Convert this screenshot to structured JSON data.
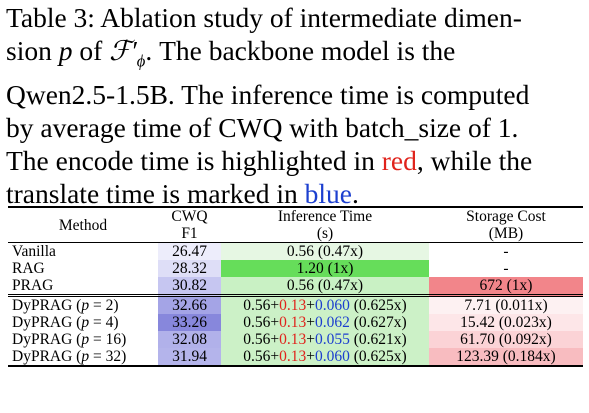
{
  "caption": {
    "line1": "Table 3: Ablation study of intermediate dimen-",
    "line2_pre": "sion ",
    "line2_var": "p",
    "line2_mid": " of ",
    "line2_func": "ℱ",
    "line2_sub": "ϕ",
    "line2_post": ".  The backbone model is the",
    "line3": "Qwen2.5-1.5B. The inference time is computed",
    "line4": "by average time of CWQ with batch_size of 1.",
    "line5_pre": "The encode time is highlighted in ",
    "line5_red": "red",
    "line5_post": ", while the",
    "line6_pre": "translate time is marked in ",
    "line6_blue": "blue",
    "line6_post": "."
  },
  "table": {
    "headers": {
      "method": "Method",
      "cwq": "CWQ",
      "cwq_sub": "F1",
      "inf": "Inference Time",
      "inf_sub": "(s)",
      "stor": "Storage Cost",
      "stor_sub": "(MB)"
    },
    "baselines": [
      {
        "method": "Vanilla",
        "f1": "26.47",
        "time": "0.56 (0.47x)",
        "storage": "-",
        "f1_bg": "#ededfb",
        "time_bg": "#e6f7e3",
        "stor_bg": "#ffffff"
      },
      {
        "method": "RAG",
        "f1": "28.32",
        "time": "1.20 (1x)",
        "storage": "-",
        "f1_bg": "#dedef7",
        "time_bg": "#66dd5a",
        "stor_bg": "#ffffff"
      },
      {
        "method": "PRAG",
        "f1": "30.82",
        "time": "0.56 (0.47x)",
        "storage": "672 (1x)",
        "f1_bg": "#c6c6f1",
        "time_bg": "#c9f1c4",
        "stor_bg": "#f2858a"
      }
    ],
    "dyprag": [
      {
        "method_pre": "DyPRAG (",
        "p": "p",
        "method_eq": " = 2)",
        "f1": "32.66",
        "t_base": "0.56+",
        "t_enc": "0.13",
        "t_plus": "+",
        "t_tr": "0.060",
        "t_ratio": " (0.625x)",
        "storage": "7.71 (0.011x)",
        "f1_bg": "#a4a4e6",
        "time_bg": "#ccf1c7",
        "stor_bg": "#fdf1f2"
      },
      {
        "method_pre": "DyPRAG (",
        "p": "p",
        "method_eq": " = 4)",
        "f1": "33.26",
        "t_base": "0.56+",
        "t_enc": "0.13",
        "t_plus": "+",
        "t_tr": "0.062",
        "t_ratio": " (0.627x)",
        "storage": "15.42 (0.023x)",
        "f1_bg": "#8787dc",
        "time_bg": "#ccf1c7",
        "stor_bg": "#fde6e8"
      },
      {
        "method_pre": "DyPRAG (",
        "p": "p",
        "method_eq": " = 16)",
        "f1": "32.08",
        "t_base": "0.56+",
        "t_enc": "0.13",
        "t_plus": "+",
        "t_tr": "0.055",
        "t_ratio": " (0.621x)",
        "storage": "61.70 (0.092x)",
        "f1_bg": "#b1b1ea",
        "time_bg": "#ccf1c7",
        "stor_bg": "#fbd3d6"
      },
      {
        "method_pre": "DyPRAG (",
        "p": "p",
        "method_eq": " = 32)",
        "f1": "31.94",
        "t_base": "0.56+",
        "t_enc": "0.13",
        "t_plus": "+",
        "t_tr": "0.060",
        "t_ratio": " (0.625x)",
        "storage": "123.39 (0.184x)",
        "f1_bg": "#b4b4eb",
        "time_bg": "#ccf1c7",
        "stor_bg": "#f8bcc0"
      }
    ]
  }
}
